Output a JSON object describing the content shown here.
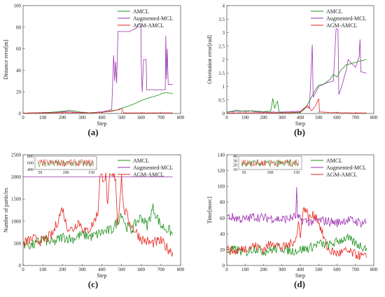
{
  "colors": {
    "amcl": "#1a8f1a",
    "augmented": "#9b30b0",
    "agm": "#e8231c"
  },
  "chart_data": [
    {
      "id": "a",
      "type": "line",
      "caption": "(a)",
      "xlabel": "Step",
      "ylabel": "Distance error[m]",
      "xlim": [
        0,
        800
      ],
      "ylim": [
        0,
        100
      ],
      "xticks": [
        0,
        100,
        200,
        300,
        400,
        500,
        600,
        700,
        800
      ],
      "yticks": [
        0,
        20,
        40,
        60,
        80,
        100
      ],
      "legend": [
        "AMCL",
        "Augmented-MCL",
        "AGM-AMCL"
      ],
      "legend_position": "top-right",
      "series": [
        {
          "name": "AMCL",
          "points": [
            [
              0,
              0.3
            ],
            [
              100,
              0.6
            ],
            [
              150,
              1.2
            ],
            [
              200,
              2.0
            ],
            [
              230,
              2.8
            ],
            [
              260,
              2.5
            ],
            [
              290,
              1.2
            ],
            [
              340,
              0.6
            ],
            [
              400,
              1.0
            ],
            [
              450,
              2.5
            ],
            [
              480,
              3.5
            ],
            [
              520,
              6.0
            ],
            [
              560,
              8.5
            ],
            [
              600,
              12
            ],
            [
              640,
              14.5
            ],
            [
              680,
              16.5
            ],
            [
              720,
              19.5
            ],
            [
              760,
              18.5
            ]
          ]
        },
        {
          "name": "Augmented-MCL",
          "points": [
            [
              0,
              0.3
            ],
            [
              100,
              0.8
            ],
            [
              200,
              1.5
            ],
            [
              230,
              2.0
            ],
            [
              260,
              1.2
            ],
            [
              300,
              0.7
            ],
            [
              350,
              0.8
            ],
            [
              400,
              1.5
            ],
            [
              450,
              3.5
            ],
            [
              460,
              54
            ],
            [
              465,
              30
            ],
            [
              470,
              48
            ],
            [
              475,
              28
            ],
            [
              482,
              76
            ],
            [
              540,
              76
            ],
            [
              575,
              79
            ],
            [
              590,
              83
            ],
            [
              598,
              83
            ],
            [
              600,
              45
            ],
            [
              605,
              20
            ],
            [
              612,
              50
            ],
            [
              625,
              50
            ],
            [
              628,
              22
            ],
            [
              700,
              22
            ],
            [
              722,
              22
            ],
            [
              725,
              72
            ],
            [
              728,
              32
            ],
            [
              732,
              60
            ],
            [
              737,
              27
            ],
            [
              760,
              27
            ]
          ]
        },
        {
          "name": "AGM-AMCL",
          "points": [
            [
              0,
              0.3
            ],
            [
              100,
              0.5
            ],
            [
              200,
              0.8
            ],
            [
              300,
              0.6
            ],
            [
              400,
              1.0
            ],
            [
              450,
              2.0
            ],
            [
              470,
              3.0
            ],
            [
              490,
              3.5
            ],
            [
              500,
              5.0
            ],
            [
              510,
              0.6
            ],
            [
              600,
              0.5
            ],
            [
              700,
              0.6
            ],
            [
              760,
              0.6
            ]
          ]
        }
      ]
    },
    {
      "id": "b",
      "type": "line",
      "caption": "(b)",
      "xlabel": "Step",
      "ylabel": "Orientation error[rad]",
      "xlim": [
        0,
        800
      ],
      "ylim": [
        0,
        4
      ],
      "xticks": [
        0,
        100,
        200,
        300,
        400,
        500,
        600,
        700,
        800
      ],
      "yticks": [
        0,
        0.5,
        1,
        1.5,
        2,
        2.5,
        3,
        3.5,
        4
      ],
      "legend": [
        "AMCL",
        "Augmented-MCL",
        "AGM-AMCL"
      ],
      "legend_position": "top-right",
      "series": [
        {
          "name": "AMCL",
          "points": [
            [
              0,
              0.05
            ],
            [
              50,
              0.12
            ],
            [
              100,
              0.08
            ],
            [
              150,
              0.1
            ],
            [
              200,
              0.06
            ],
            [
              240,
              0.1
            ],
            [
              250,
              0.55
            ],
            [
              260,
              0.2
            ],
            [
              275,
              0.45
            ],
            [
              285,
              0.05
            ],
            [
              350,
              0.02
            ],
            [
              400,
              0.04
            ],
            [
              430,
              0.2
            ],
            [
              460,
              0.6
            ],
            [
              480,
              0.85
            ],
            [
              500,
              1.05
            ],
            [
              530,
              1.1
            ],
            [
              560,
              1.25
            ],
            [
              580,
              1.45
            ],
            [
              600,
              1.35
            ],
            [
              620,
              1.6
            ],
            [
              650,
              1.8
            ],
            [
              700,
              1.9
            ],
            [
              730,
              1.95
            ],
            [
              760,
              2.0
            ]
          ]
        },
        {
          "name": "Augmented-MCL",
          "points": [
            [
              0,
              0.05
            ],
            [
              100,
              0.1
            ],
            [
              200,
              0.05
            ],
            [
              300,
              0.05
            ],
            [
              400,
              0.08
            ],
            [
              430,
              0.25
            ],
            [
              450,
              0.2
            ],
            [
              465,
              2.55
            ],
            [
              470,
              0.6
            ],
            [
              500,
              1.0
            ],
            [
              550,
              1.15
            ],
            [
              580,
              1.2
            ],
            [
              595,
              3.15
            ],
            [
              605,
              3.1
            ],
            [
              610,
              0.7
            ],
            [
              625,
              1.0
            ],
            [
              650,
              1.6
            ],
            [
              660,
              2.0
            ],
            [
              700,
              1.7
            ],
            [
              720,
              2.1
            ],
            [
              725,
              2.75
            ],
            [
              730,
              1.55
            ],
            [
              760,
              1.5
            ]
          ]
        },
        {
          "name": "AGM-AMCL",
          "points": [
            [
              0,
              0.02
            ],
            [
              100,
              0.02
            ],
            [
              200,
              0.03
            ],
            [
              300,
              0.02
            ],
            [
              400,
              0.05
            ],
            [
              430,
              0.25
            ],
            [
              440,
              0.3
            ],
            [
              460,
              0.1
            ],
            [
              480,
              0.25
            ],
            [
              500,
              0.55
            ],
            [
              505,
              0.05
            ],
            [
              600,
              0.03
            ],
            [
              700,
              0.02
            ],
            [
              760,
              0.02
            ]
          ]
        }
      ]
    },
    {
      "id": "c",
      "type": "line",
      "caption": "(c)",
      "xlabel": "Step",
      "ylabel": "Number of particles",
      "xlim": [
        0,
        800
      ],
      "ylim": [
        0,
        2500
      ],
      "xticks": [
        0,
        100,
        200,
        300,
        400,
        500,
        600,
        700,
        800
      ],
      "yticks": [
        0,
        500,
        1000,
        1500,
        2000,
        2500
      ],
      "legend": [
        "AMCL",
        "Augmented-MCL",
        "AGM-AMCL"
      ],
      "legend_position": "top-right",
      "series": [
        {
          "name": "AMCL",
          "points": [
            [
              0,
              500
            ],
            [
              50,
              450
            ],
            [
              100,
              600
            ],
            [
              150,
              500
            ],
            [
              200,
              650
            ],
            [
              250,
              600
            ],
            [
              300,
              700
            ],
            [
              350,
              650
            ],
            [
              400,
              750
            ],
            [
              450,
              800
            ],
            [
              480,
              1000
            ],
            [
              500,
              1200
            ],
            [
              520,
              900
            ],
            [
              550,
              800
            ],
            [
              580,
              1000
            ],
            [
              600,
              1100
            ],
            [
              630,
              900
            ],
            [
              660,
              1300
            ],
            [
              700,
              900
            ],
            [
              740,
              800
            ],
            [
              760,
              700
            ]
          ]
        },
        {
          "name": "Augmented-MCL",
          "points": [
            [
              0,
              2000
            ],
            [
              760,
              2000
            ]
          ]
        },
        {
          "name": "AGM-AMCL",
          "points": [
            [
              0,
              500
            ],
            [
              50,
              600
            ],
            [
              100,
              550
            ],
            [
              150,
              700
            ],
            [
              200,
              1300
            ],
            [
              220,
              900
            ],
            [
              250,
              800
            ],
            [
              280,
              1000
            ],
            [
              320,
              750
            ],
            [
              350,
              900
            ],
            [
              380,
              1200
            ],
            [
              390,
              2000
            ],
            [
              420,
              2000
            ],
            [
              430,
              1300
            ],
            [
              440,
              2000
            ],
            [
              470,
              2000
            ],
            [
              480,
              900
            ],
            [
              500,
              2000
            ],
            [
              510,
              1300
            ],
            [
              550,
              900
            ],
            [
              600,
              600
            ],
            [
              650,
              500
            ],
            [
              700,
              550
            ],
            [
              730,
              400
            ],
            [
              760,
              300
            ]
          ]
        }
      ],
      "inset": {
        "xticks": [
          50,
          100,
          150
        ],
        "yticks": [
          400,
          600,
          800
        ]
      }
    },
    {
      "id": "d",
      "type": "line",
      "caption": "(d)",
      "xlabel": "Step",
      "ylabel": "Time[msec]",
      "xlim": [
        0,
        800
      ],
      "ylim": [
        0,
        140
      ],
      "xticks": [
        0,
        100,
        200,
        300,
        400,
        500,
        600,
        700,
        800
      ],
      "yticks": [
        0,
        20,
        40,
        60,
        80,
        100,
        120,
        140
      ],
      "legend": [
        "AMCL",
        "Augmented-MCL",
        "AGM-AMCL"
      ],
      "legend_position": "top-right",
      "series": [
        {
          "name": "AMCL",
          "points": [
            [
              0,
              18
            ],
            [
              50,
              20
            ],
            [
              100,
              16
            ],
            [
              150,
              22
            ],
            [
              200,
              18
            ],
            [
              250,
              20
            ],
            [
              300,
              22
            ],
            [
              350,
              18
            ],
            [
              400,
              20
            ],
            [
              450,
              22
            ],
            [
              500,
              28
            ],
            [
              550,
              25
            ],
            [
              600,
              30
            ],
            [
              650,
              35
            ],
            [
              700,
              28
            ],
            [
              730,
              25
            ],
            [
              760,
              22
            ]
          ]
        },
        {
          "name": "Augmented-MCL",
          "points": [
            [
              0,
              62
            ],
            [
              50,
              60
            ],
            [
              100,
              58
            ],
            [
              150,
              62
            ],
            [
              200,
              60
            ],
            [
              250,
              60
            ],
            [
              300,
              58
            ],
            [
              350,
              60
            ],
            [
              375,
              62
            ],
            [
              380,
              95
            ],
            [
              385,
              60
            ],
            [
              400,
              58
            ],
            [
              450,
              55
            ],
            [
              500,
              57
            ],
            [
              550,
              56
            ],
            [
              600,
              54
            ],
            [
              650,
              58
            ],
            [
              700,
              56
            ],
            [
              730,
              54
            ],
            [
              760,
              55
            ]
          ]
        },
        {
          "name": "AGM-AMCL",
          "points": [
            [
              0,
              20
            ],
            [
              50,
              18
            ],
            [
              100,
              22
            ],
            [
              150,
              25
            ],
            [
              200,
              20
            ],
            [
              250,
              30
            ],
            [
              300,
              22
            ],
            [
              350,
              28
            ],
            [
              380,
              35
            ],
            [
              390,
              55
            ],
            [
              400,
              40
            ],
            [
              420,
              75
            ],
            [
              450,
              60
            ],
            [
              480,
              65
            ],
            [
              500,
              55
            ],
            [
              520,
              40
            ],
            [
              550,
              20
            ],
            [
              600,
              15
            ],
            [
              650,
              18
            ],
            [
              700,
              14
            ],
            [
              730,
              12
            ],
            [
              760,
              10
            ]
          ]
        }
      ],
      "inset": {
        "xticks": [
          50,
          100,
          150
        ],
        "yticks": [
          10,
          20,
          30,
          40
        ]
      }
    }
  ]
}
